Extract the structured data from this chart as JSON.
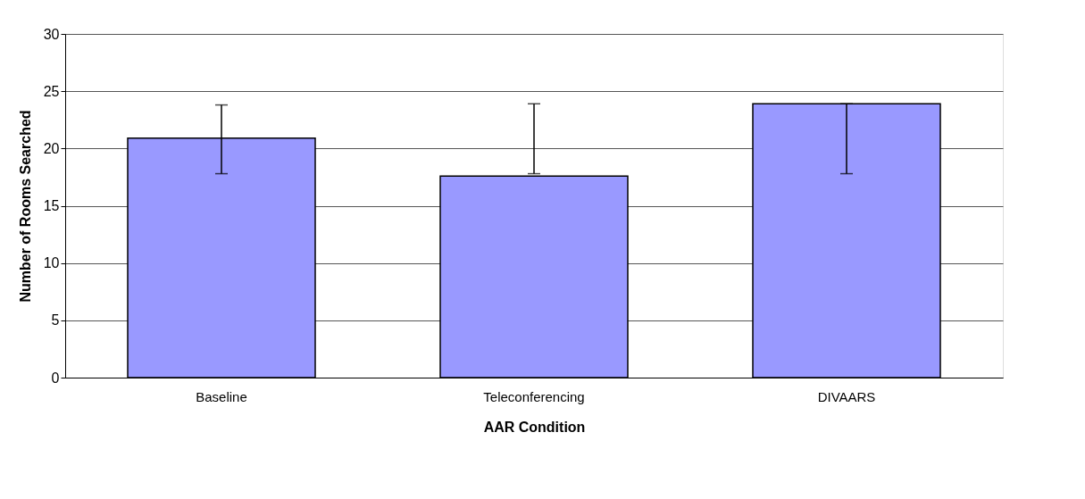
{
  "chart_data": {
    "type": "bar",
    "xlabel": "AAR Condition",
    "ylabel": "Number of Rooms Searched",
    "categories": [
      "Baseline",
      "Teleconferencing",
      "DIVAARS"
    ],
    "values": [
      20.9,
      17.6,
      23.9
    ],
    "color": "#9999ff",
    "errors": [
      [
        17.8,
        23.8
      ],
      [
        17.8,
        23.9
      ],
      [
        17.8,
        23.9
      ]
    ],
    "ylim": [
      0,
      30
    ],
    "yticks": [
      0,
      5,
      10,
      15,
      20,
      25,
      30
    ],
    "grid": "y"
  }
}
